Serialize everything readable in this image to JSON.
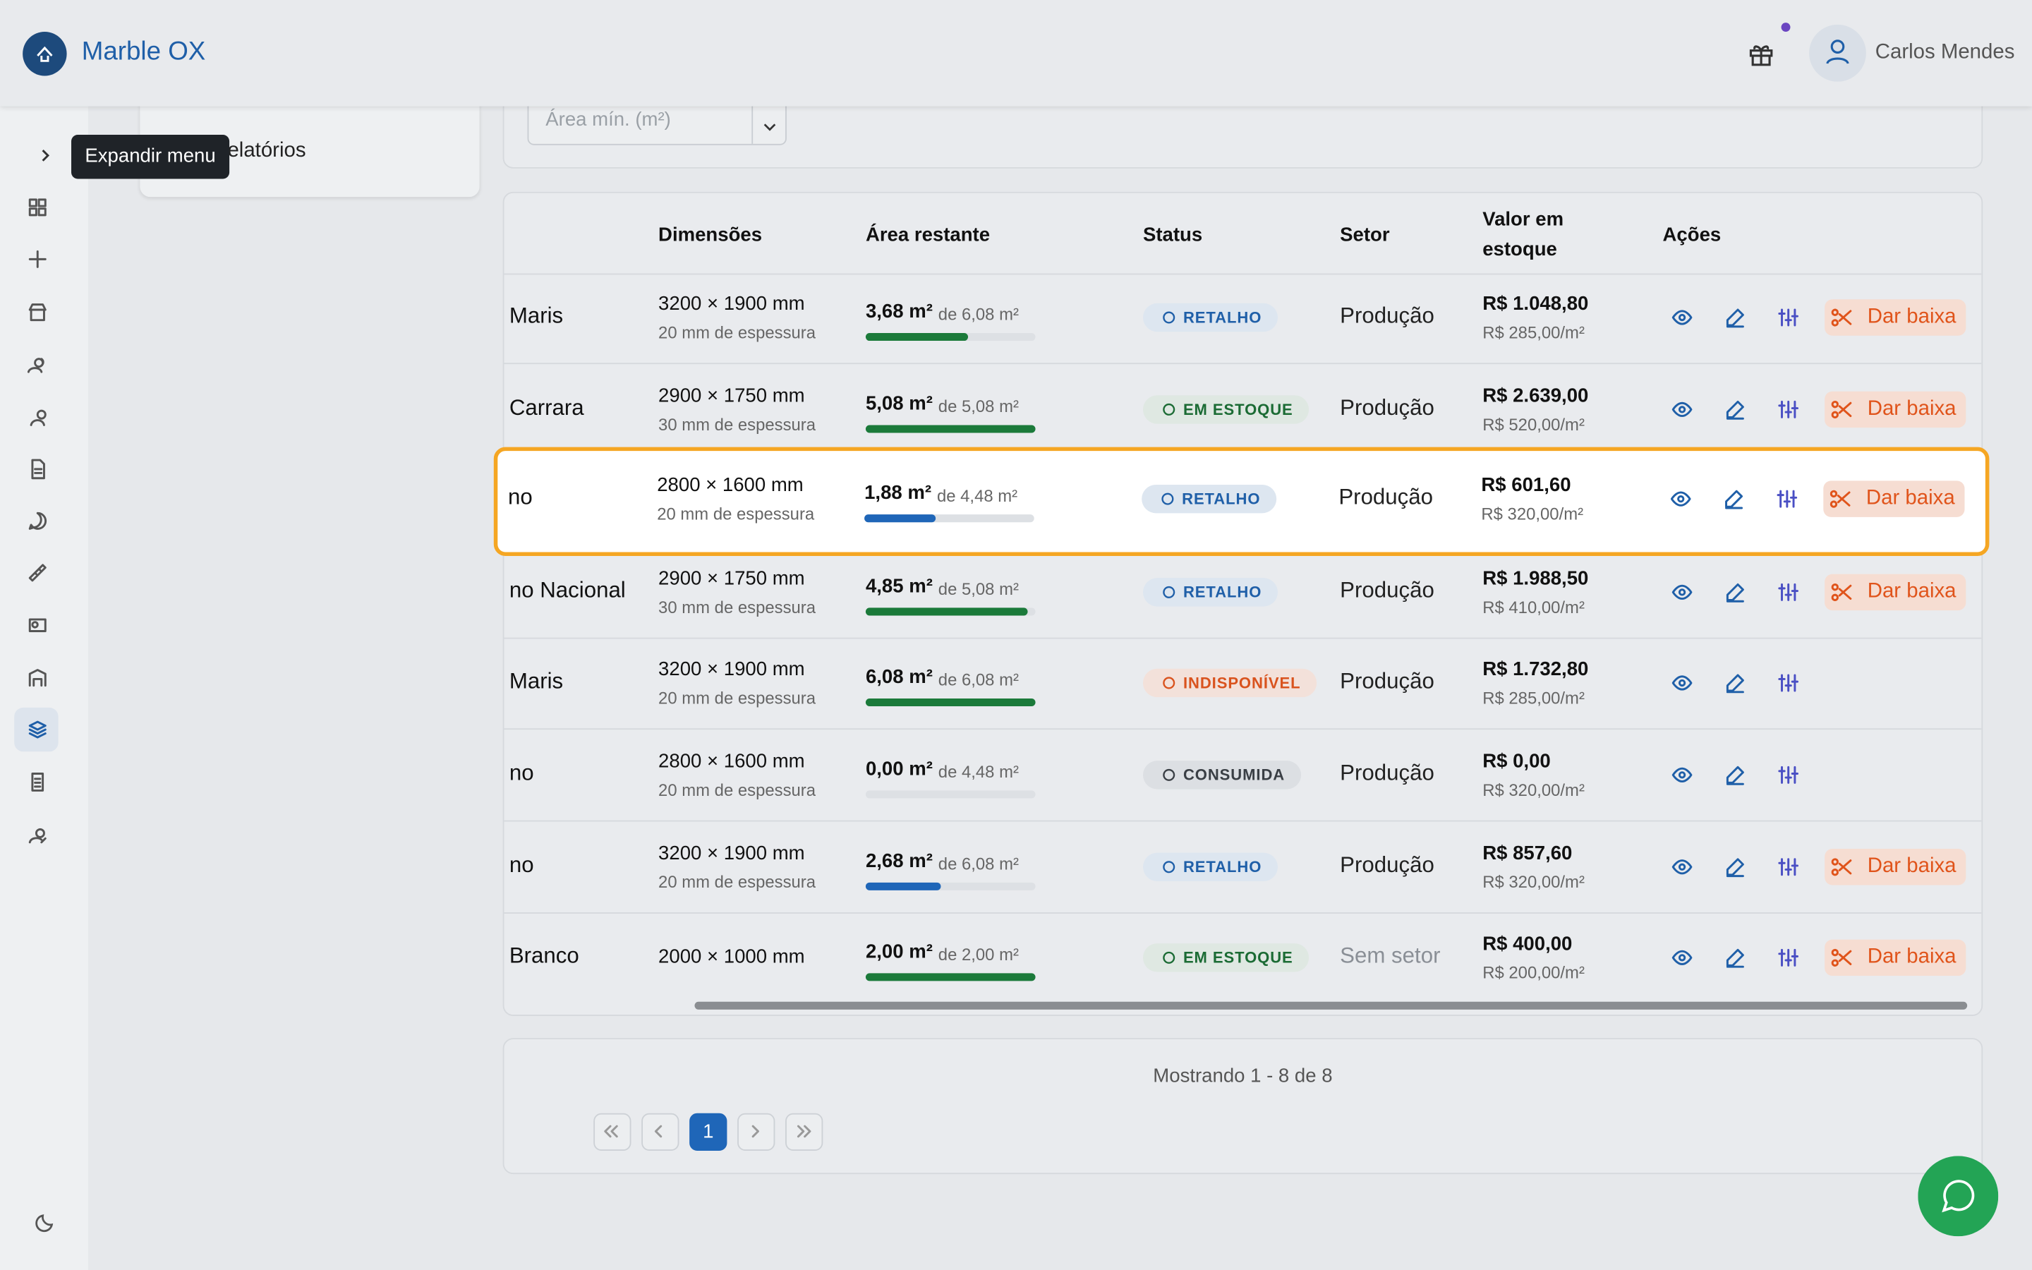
{
  "header": {
    "brand": "Marble OX",
    "user": "Carlos Mendes"
  },
  "sidebar": {
    "tooltip": "Expandir menu",
    "panel_item": "Relatórios"
  },
  "filter": {
    "placeholder": "Área mín. (m²)"
  },
  "table": {
    "columns": [
      "Dimensões",
      "Área restante",
      "Status",
      "Setor",
      "Valor em estoque",
      "Ações"
    ],
    "rows": [
      {
        "name": "Maris",
        "dimensions": "3200 × 1900 mm",
        "thickness": "20 mm de espessura",
        "remaining": {
          "value": 3.68,
          "label": "3,68 m²"
        },
        "total": {
          "value": 6.08,
          "label": "de 6,08 m²"
        },
        "bar_color": "#1b7a3a",
        "status": {
          "label": "RETALHO",
          "color": "#1f5fa8",
          "bg": "#dde6f0"
        },
        "sector": "Produção",
        "value": "R$ 1.048,80",
        "unit_price": "R$ 285,00/m²",
        "action": "Dar baixa"
      },
      {
        "name": "Carrara",
        "dimensions": "2900 × 1750 mm",
        "thickness": "30 mm de espessura",
        "remaining": {
          "value": 5.08,
          "label": "5,08 m²"
        },
        "total": {
          "value": 5.08,
          "label": "de 5,08 m²"
        },
        "bar_color": "#1b7a3a",
        "status": {
          "label": "EM ESTOQUE",
          "color": "#1b6b34",
          "bg": "#dfe8e2"
        },
        "sector": "Produção",
        "value": "R$ 2.639,00",
        "unit_price": "R$ 520,00/m²",
        "action": "Dar baixa"
      },
      {
        "name": "no",
        "dimensions": "2800 × 1600 mm",
        "thickness": "20 mm de espessura",
        "remaining": {
          "value": 1.88,
          "label": "1,88 m²"
        },
        "total": {
          "value": 4.48,
          "label": "de 4,48 m²"
        },
        "bar_color": "#1f66b8",
        "status": {
          "label": "RETALHO",
          "color": "#1f5fa8",
          "bg": "#dde6f0"
        },
        "sector": "Produção",
        "value": "R$ 601,60",
        "unit_price": "R$ 320,00/m²",
        "action": "Dar baixa"
      },
      {
        "name": "no Nacional",
        "dimensions": "2900 × 1750 mm",
        "thickness": "30 mm de espessura",
        "remaining": {
          "value": 4.85,
          "label": "4,85 m²"
        },
        "total": {
          "value": 5.08,
          "label": "de 5,08 m²"
        },
        "bar_color": "#1b7a3a",
        "status": {
          "label": "RETALHO",
          "color": "#1f5fa8",
          "bg": "#dde6f0"
        },
        "sector": "Produção",
        "value": "R$ 1.988,50",
        "unit_price": "R$ 410,00/m²",
        "action": "Dar baixa"
      },
      {
        "name": "Maris",
        "dimensions": "3200 × 1900 mm",
        "thickness": "20 mm de espessura",
        "remaining": {
          "value": 6.08,
          "label": "6,08 m²"
        },
        "total": {
          "value": 6.08,
          "label": "de 6,08 m²"
        },
        "bar_color": "#1b7a3a",
        "status": {
          "label": "INDISPONÍVEL",
          "color": "#d9531e",
          "bg": "#f3e1da"
        },
        "sector": "Produção",
        "value": "R$ 1.732,80",
        "unit_price": "R$ 285,00/m²"
      },
      {
        "name": "no",
        "dimensions": "2800 × 1600 mm",
        "thickness": "20 mm de espessura",
        "remaining": {
          "value": 0,
          "label": "0,00 m²"
        },
        "total": {
          "value": 4.48,
          "label": "de 4,48 m²"
        },
        "bar_color": "#1b7a3a",
        "status": {
          "label": "CONSUMIDA",
          "color": "#3a3f45",
          "bg": "#dcdfe3"
        },
        "sector": "Produção",
        "value": "R$ 0,00",
        "unit_price": "R$ 320,00/m²"
      },
      {
        "name": "no",
        "dimensions": "3200 × 1900 mm",
        "thickness": "20 mm de espessura",
        "remaining": {
          "value": 2.68,
          "label": "2,68 m²"
        },
        "total": {
          "value": 6.08,
          "label": "de 6,08 m²"
        },
        "bar_color": "#1f66b8",
        "status": {
          "label": "RETALHO",
          "color": "#1f5fa8",
          "bg": "#dde6f0"
        },
        "sector": "Produção",
        "value": "R$ 857,60",
        "unit_price": "R$ 320,00/m²",
        "action": "Dar baixa"
      },
      {
        "name": "Branco",
        "dimensions": "2000 × 1000 mm",
        "remaining": {
          "value": 2.0,
          "label": "2,00 m²"
        },
        "total": {
          "value": 2.0,
          "label": "de 2,00 m²"
        },
        "bar_color": "#1b7a3a",
        "status": {
          "label": "EM ESTOQUE",
          "color": "#1b6b34",
          "bg": "#dfe8e2"
        },
        "sector": "Sem setor",
        "sector_color": "#8a8f96",
        "value": "R$ 400,00",
        "unit_price": "R$ 200,00/m²",
        "action": "Dar baixa"
      }
    ]
  },
  "pagination": {
    "summary": "Mostrando 1 - 8 de 8",
    "current": "1"
  }
}
